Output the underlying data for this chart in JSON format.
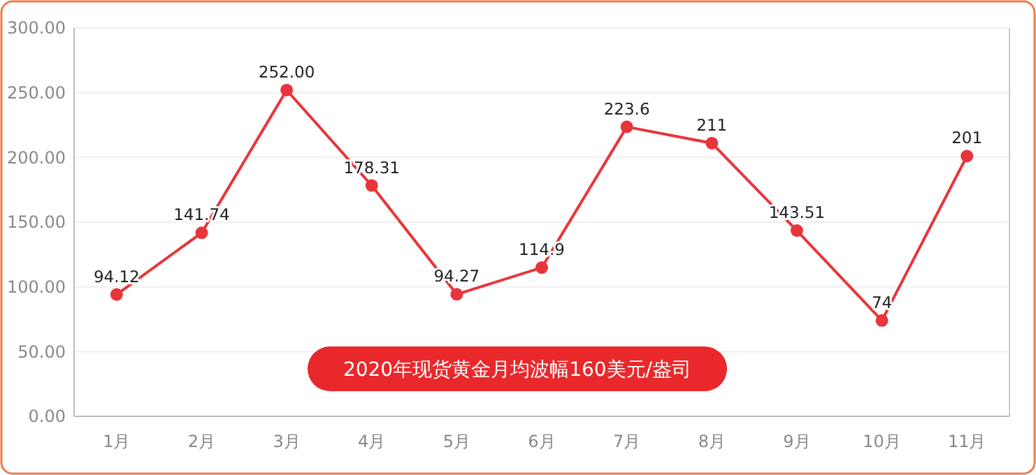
{
  "chart_data": {
    "type": "line",
    "categories": [
      "1月",
      "2月",
      "3月",
      "4月",
      "5月",
      "6月",
      "7月",
      "8月",
      "9月",
      "10月",
      "11月"
    ],
    "series": [
      {
        "color": "#e8353b",
        "values": [
          94.12,
          141.74,
          252,
          178.31,
          94.27,
          114.9,
          223.6,
          211,
          143.51,
          74,
          201
        ],
        "value_labels": [
          "94.12",
          "141.74",
          "252.00",
          "178.31",
          "94.27",
          "114.9",
          "223.6",
          "211",
          "143.51",
          "74",
          "201"
        ]
      }
    ],
    "ylim": [
      0,
      300
    ],
    "yticks": [
      {
        "value": 0,
        "label": "0.00"
      },
      {
        "value": 50,
        "label": "50.00"
      },
      {
        "value": 100,
        "label": "100.00"
      },
      {
        "value": 150,
        "label": "150.00"
      },
      {
        "value": 200,
        "label": "200.00"
      },
      {
        "value": 250,
        "label": "250.00"
      },
      {
        "value": 300,
        "label": "300.00"
      }
    ],
    "grid": "y",
    "marker": "circle",
    "annotations": [
      "2020年现货黄金月均波幅160美元/盎司"
    ]
  }
}
